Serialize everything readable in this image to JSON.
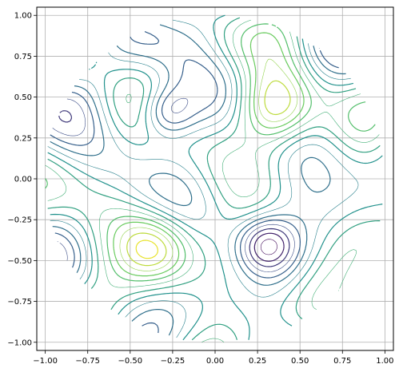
{
  "chart_data": {
    "type": "contour",
    "title": "",
    "xlabel": "",
    "ylabel": "",
    "xlim": [
      -1.05,
      1.05
    ],
    "ylim": [
      -1.05,
      1.05
    ],
    "grid": true,
    "domain": "unit disk",
    "colormap": "viridis",
    "xticks": [
      "−1.00",
      "−0.75",
      "−0.50",
      "−0.25",
      "0.00",
      "0.25",
      "0.50",
      "0.75",
      "1.00"
    ],
    "yticks": [
      "−1.00",
      "−0.75",
      "−0.50",
      "−0.25",
      "0.00",
      "0.25",
      "0.50",
      "0.75",
      "1.00"
    ],
    "tick_values": [
      -1.0,
      -0.75,
      -0.5,
      -0.25,
      0.0,
      0.25,
      0.5,
      0.75,
      1.0
    ],
    "level_colors": [
      "#440154",
      "#3b528b",
      "#21918c",
      "#5ec962",
      "#fde725"
    ],
    "features": [
      {
        "kind": "maximum",
        "x": 0.35,
        "y": 0.43
      },
      {
        "kind": "maximum",
        "x": -0.35,
        "y": -0.42
      },
      {
        "kind": "minimum",
        "x": -0.29,
        "y": 0.41
      },
      {
        "kind": "minimum",
        "x": 0.3,
        "y": -0.4
      }
    ]
  }
}
